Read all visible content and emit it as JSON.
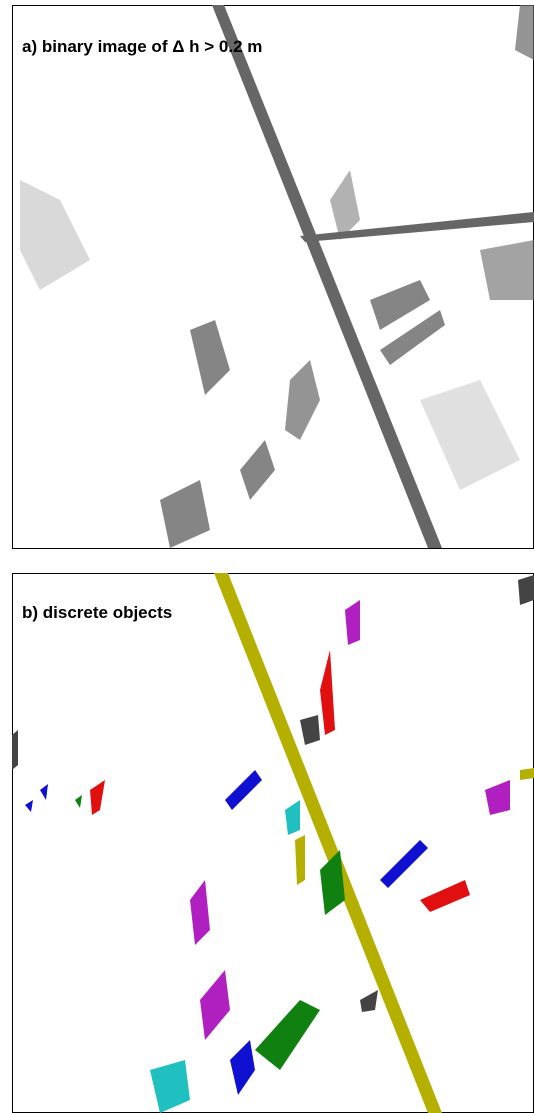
{
  "panels": [
    {
      "label": "a) binary image of Δ h > 0.2 m"
    },
    {
      "label": "b) discrete objects"
    }
  ]
}
